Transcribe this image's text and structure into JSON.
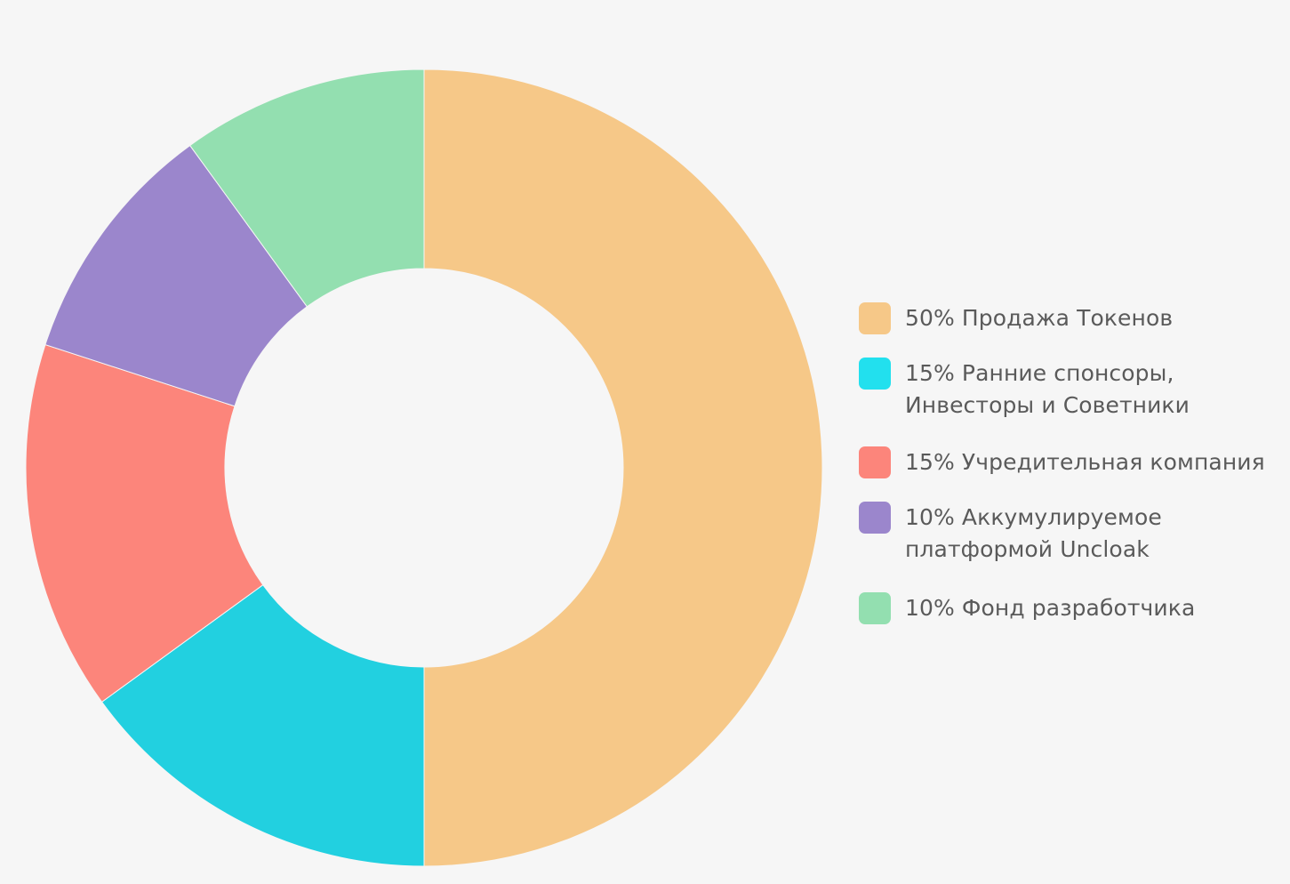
{
  "chart_data": {
    "type": "pie",
    "title": "",
    "categories": [
      "50% Продажа Токенов",
      "15% Ранние спонсоры,\nИнвесторы и Советники",
      "15% Учредительная компания",
      "10% Аккумулируемое\nплатформой Uncloak",
      "10% Фонд разработчика"
    ],
    "values": [
      50,
      15,
      15,
      10,
      10
    ],
    "colors": [
      "#f6c888",
      "#22d0e0",
      "#fc857b",
      "#9b86cc",
      "#93dfb0"
    ],
    "legend_swatch_colors": [
      "#f6c888",
      "#22e0ee",
      "#fc857b",
      "#9b86cc",
      "#93dfb0"
    ],
    "start_angle_deg": 0,
    "direction": "clockwise",
    "donut": true,
    "legend_position": "right"
  }
}
